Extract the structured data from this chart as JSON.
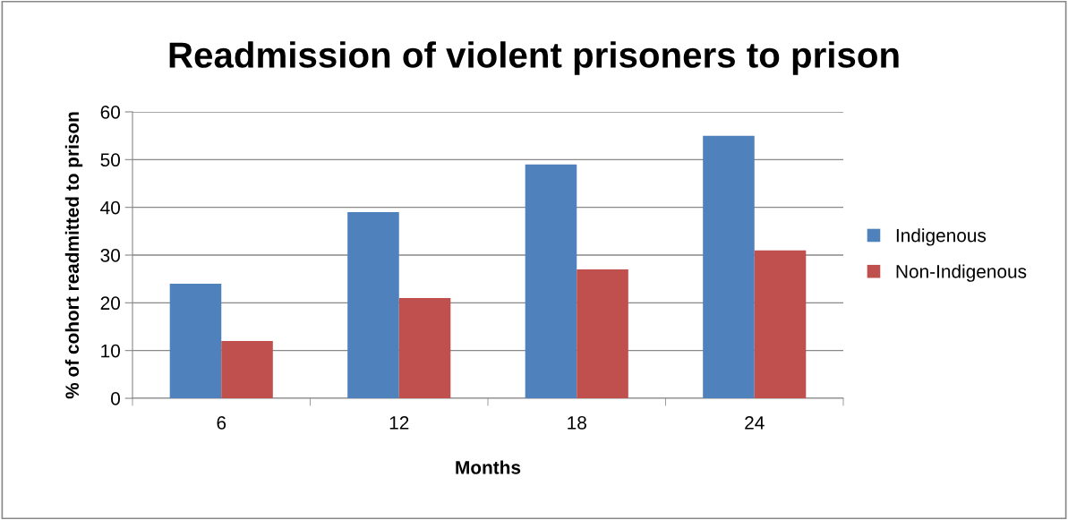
{
  "chart_data": {
    "type": "bar",
    "title": "Readmission of violent prisoners to prison",
    "xlabel": "Months",
    "ylabel": "% of cohort readmitted to prison",
    "categories": [
      "6",
      "12",
      "18",
      "24"
    ],
    "series": [
      {
        "name": "Indigenous",
        "color": "#4f81bd",
        "values": [
          24,
          39,
          49,
          55
        ]
      },
      {
        "name": "Non-Indigenous",
        "color": "#c0504d",
        "values": [
          12,
          21,
          27,
          31
        ]
      }
    ],
    "ylim": [
      0,
      60
    ],
    "yticks": [
      0,
      10,
      20,
      30,
      40,
      50,
      60
    ],
    "grid": "y",
    "legend": "right"
  }
}
